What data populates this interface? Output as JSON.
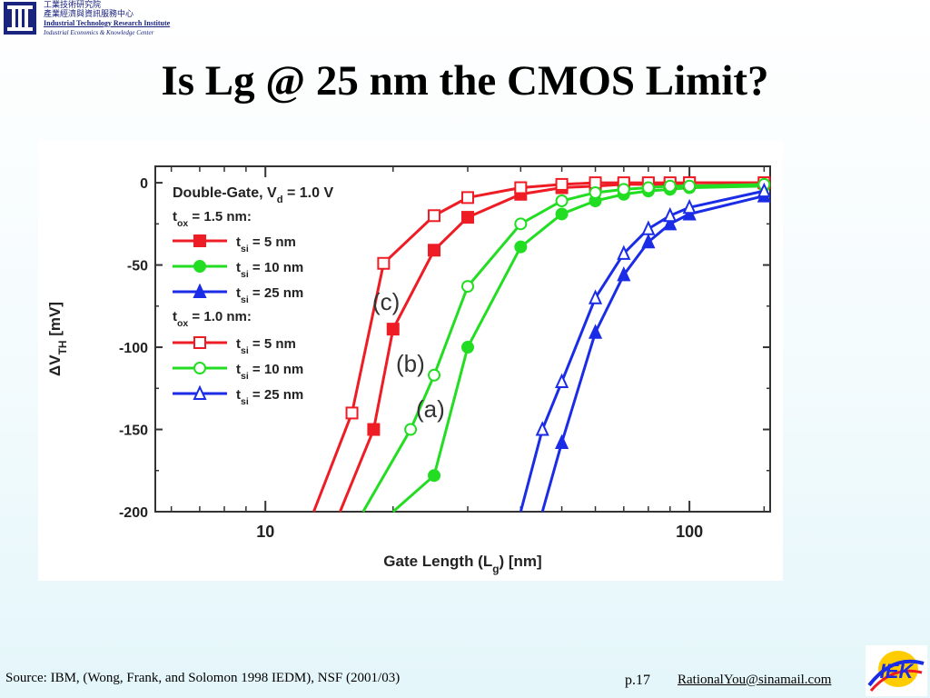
{
  "header": {
    "org_zh_1": "工業技術研究院",
    "org_zh_2": "產業經濟與資訊服務中心",
    "org_en_1": "Industrial Technology Research Institute",
    "org_en_2": "Industrial Economics & Knowledge Center",
    "logo_icon": "itri-logo-icon"
  },
  "title": "Is Lg @ 25 nm the CMOS Limit?",
  "footer": {
    "source": "Source: IBM, (Wong, Frank, and Solomon 1998 IEDM), NSF (2001/03)",
    "page": "p.17",
    "email": "RationalYou@sinamail.com",
    "logo_text": "IEK"
  },
  "colors": {
    "red": "#ee1c24",
    "green": "#22dd22",
    "blue": "#1a2ce6",
    "title": "#000000",
    "org_text": "#1a237e"
  },
  "chart_data": {
    "type": "line",
    "xlabel_main": "Gate Length (L",
    "xlabel_sub": "g",
    "xlabel_tail": ") [nm]",
    "ylabel_main": "ΔV",
    "ylabel_sub": "TH",
    "ylabel_tail": " [mV]",
    "xscale": "log",
    "xlim": [
      5.5,
      155
    ],
    "ylim": [
      -200,
      10
    ],
    "xticks": [
      10,
      100
    ],
    "xtick_labels": [
      "10",
      "100"
    ],
    "yticks": [
      0,
      -50,
      -100,
      -150,
      -200
    ],
    "ytick_labels": [
      "0",
      "-50",
      "-100",
      "-150",
      "-200"
    ],
    "legend": {
      "header": "Double-Gate, V",
      "header_sub": "d",
      "header_tail": " = 1.0 V",
      "group1": "t",
      "group1_sub": "ox",
      "group1_tail": " = 1.5 nm:",
      "group2": "t",
      "group2_sub": "ox",
      "group2_tail": " = 1.0 nm:",
      "entry_t": "t",
      "entry_sub": "si",
      "entries": [
        " =  5 nm",
        " =  10 nm",
        " =  25 nm",
        " =  5 nm",
        " = 10 nm",
        " = 25 nm"
      ]
    },
    "annotations": [
      "(c)",
      "(b)",
      "(a)"
    ],
    "series": [
      {
        "color": "red",
        "marker": "filled-square",
        "x": [
          15,
          18,
          20,
          25,
          30,
          40,
          50,
          60,
          70,
          80,
          90,
          100,
          150
        ],
        "y": [
          -200,
          -150,
          -89,
          -41,
          -21,
          -7,
          -3,
          -2,
          -1,
          -1,
          -1,
          0,
          0
        ]
      },
      {
        "color": "green",
        "marker": "filled-circle",
        "x": [
          20,
          25,
          30,
          40,
          50,
          60,
          70,
          80,
          90,
          100,
          150
        ],
        "y": [
          -200,
          -178,
          -100,
          -39,
          -19,
          -11,
          -7,
          -5,
          -4,
          -3,
          -2
        ]
      },
      {
        "color": "blue",
        "marker": "filled-triangle",
        "x": [
          45,
          50,
          60,
          70,
          80,
          90,
          100,
          150
        ],
        "y": [
          -200,
          -158,
          -91,
          -56,
          -36,
          -25,
          -19,
          -8
        ]
      },
      {
        "color": "red",
        "marker": "open-square",
        "x": [
          13,
          16,
          19,
          25,
          30,
          40,
          50,
          60,
          70,
          80,
          90,
          100,
          150
        ],
        "y": [
          -200,
          -140,
          -49,
          -20,
          -9,
          -3,
          -1,
          0,
          0,
          0,
          0,
          0,
          0
        ]
      },
      {
        "color": "green",
        "marker": "open-circle",
        "x": [
          17,
          22,
          25,
          30,
          40,
          50,
          60,
          70,
          80,
          90,
          100,
          150
        ],
        "y": [
          -200,
          -150,
          -117,
          -63,
          -25,
          -11,
          -6,
          -4,
          -3,
          -2,
          -2,
          -1
        ]
      },
      {
        "color": "blue",
        "marker": "open-triangle",
        "x": [
          40,
          45,
          50,
          60,
          70,
          80,
          90,
          100,
          150
        ],
        "y": [
          -200,
          -150,
          -121,
          -70,
          -43,
          -28,
          -20,
          -15,
          -5
        ]
      }
    ]
  }
}
